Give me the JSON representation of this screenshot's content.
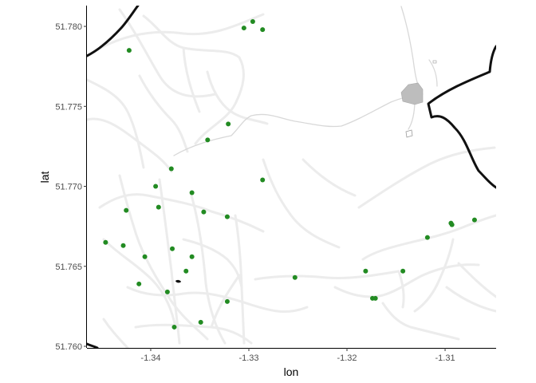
{
  "chart_data": {
    "type": "scatter",
    "title": "",
    "xlabel": "lon",
    "ylabel": "lat",
    "xlim": [
      -1.3465,
      -1.3048
    ],
    "ylim": [
      51.7599,
      51.7813
    ],
    "x_ticks": [
      -1.34,
      -1.33,
      -1.32,
      -1.31
    ],
    "x_tick_labels": [
      "-1.34",
      "-1.33",
      "-1.32",
      "-1.31"
    ],
    "y_ticks": [
      51.76,
      51.765,
      51.77,
      51.775,
      51.78
    ],
    "y_tick_labels": [
      "51.760",
      "51.765",
      "51.770",
      "51.775",
      "51.780"
    ],
    "grid": false,
    "legend": "none",
    "point_color": "#228B22",
    "road_color": "#ececec",
    "boundary_color": "#111111",
    "building_color": "#bdbdbd",
    "points": [
      {
        "x": -1.3422,
        "y": 51.7785
      },
      {
        "x": -1.3305,
        "y": 51.7799
      },
      {
        "x": -1.3296,
        "y": 51.7803
      },
      {
        "x": -1.3286,
        "y": 51.7798
      },
      {
        "x": -1.3321,
        "y": 51.7739
      },
      {
        "x": -1.3342,
        "y": 51.7729
      },
      {
        "x": -1.3379,
        "y": 51.7711
      },
      {
        "x": -1.3286,
        "y": 51.7704
      },
      {
        "x": -1.3395,
        "y": 51.77
      },
      {
        "x": -1.3358,
        "y": 51.7696
      },
      {
        "x": -1.3392,
        "y": 51.7687
      },
      {
        "x": -1.3425,
        "y": 51.7685
      },
      {
        "x": -1.3346,
        "y": 51.7684
      },
      {
        "x": -1.3322,
        "y": 51.7681
      },
      {
        "x": -1.3446,
        "y": 51.7665
      },
      {
        "x": -1.3428,
        "y": 51.7663
      },
      {
        "x": -1.3378,
        "y": 51.7661
      },
      {
        "x": -1.3406,
        "y": 51.7656
      },
      {
        "x": -1.3358,
        "y": 51.7656
      },
      {
        "x": -1.3364,
        "y": 51.7647
      },
      {
        "x": -1.3412,
        "y": 51.7639
      },
      {
        "x": -1.3383,
        "y": 51.7634
      },
      {
        "x": -1.3322,
        "y": 51.7628
      },
      {
        "x": -1.3253,
        "y": 51.7643
      },
      {
        "x": -1.3181,
        "y": 51.7647
      },
      {
        "x": -1.3143,
        "y": 51.7647
      },
      {
        "x": -1.3174,
        "y": 51.763
      },
      {
        "x": -1.3171,
        "y": 51.763
      },
      {
        "x": -1.3118,
        "y": 51.7668
      },
      {
        "x": -1.3094,
        "y": 51.7677
      },
      {
        "x": -1.3093,
        "y": 51.7676
      },
      {
        "x": -1.307,
        "y": 51.7679
      },
      {
        "x": -1.3349,
        "y": 51.7615
      },
      {
        "x": -1.3376,
        "y": 51.7612
      }
    ]
  }
}
